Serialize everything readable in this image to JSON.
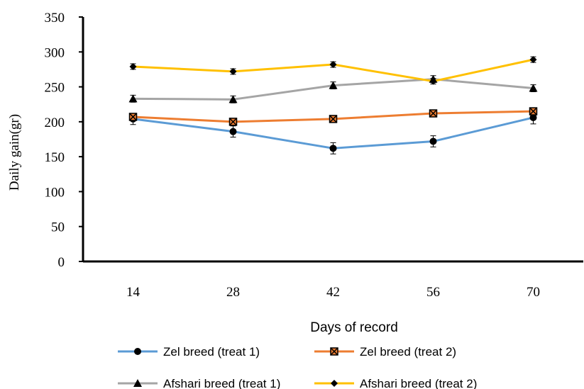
{
  "chart_data": {
    "type": "line",
    "title": "",
    "xlabel": "Days of record",
    "ylabel": "Daily gain(gr)",
    "categories": [
      "14",
      "28",
      "42",
      "56",
      "70"
    ],
    "ylim": [
      0,
      350
    ],
    "yticks": [
      "0",
      "50",
      "100",
      "150",
      "200",
      "250",
      "300",
      "350"
    ],
    "grid": false,
    "legend_position": "bottom",
    "series": [
      {
        "name": "Zel breed (treat 1)",
        "values": [
          204,
          186,
          162,
          172,
          206
        ],
        "errors": [
          8,
          8,
          8,
          8,
          9
        ],
        "color": "#5b9bd5",
        "marker": "circle"
      },
      {
        "name": "Zel breed (treat 2)",
        "values": [
          207,
          200,
          204,
          212,
          215
        ],
        "errors": [
          4,
          4,
          4,
          4,
          4
        ],
        "color": "#ed7d31",
        "marker": "square-x"
      },
      {
        "name": "Afshari breed (treat 1)",
        "values": [
          233,
          232,
          252,
          261,
          248
        ],
        "errors": [
          5,
          5,
          5,
          5,
          5
        ],
        "color": "#a5a5a5",
        "marker": "triangle"
      },
      {
        "name": "Afshari breed (treat 2)",
        "values": [
          279,
          272,
          282,
          258,
          289
        ],
        "errors": [
          4,
          4,
          4,
          4,
          4
        ],
        "color": "#ffc000",
        "marker": "diamond"
      }
    ]
  }
}
